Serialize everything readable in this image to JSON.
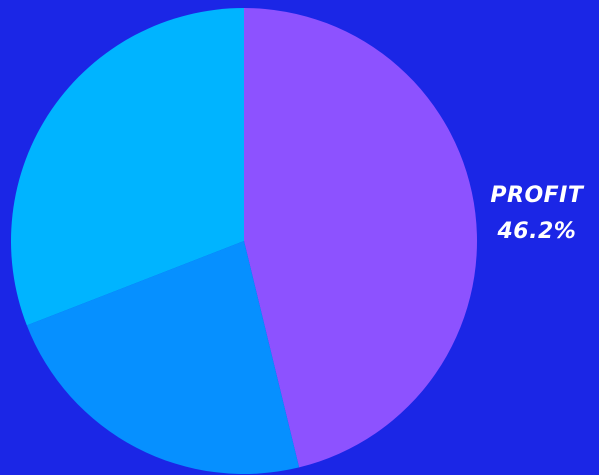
{
  "chart_data": {
    "type": "pie",
    "title": "",
    "slices": [
      {
        "label": "PROFIT",
        "value": 46.2,
        "display": "46.2%",
        "color": "#8d52ff"
      },
      {
        "label": "",
        "value": 22.9,
        "display": "",
        "color": "#0690ff"
      },
      {
        "label": "",
        "value": 30.9,
        "display": "",
        "color": "#00b4ff"
      }
    ],
    "start_angle_deg": 0,
    "direction": "clockwise",
    "legend": "none"
  },
  "colors": {
    "background": "#1b26e6",
    "label_text": "#ffffff"
  }
}
